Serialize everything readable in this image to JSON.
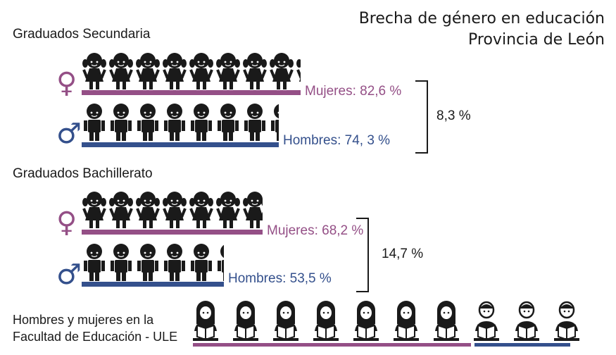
{
  "header": {
    "title_line1": "Brecha de género en educación",
    "title_line2": "Provincia de León"
  },
  "icons": {
    "female": "female-symbol-icon",
    "male": "male-symbol-icon",
    "female_glyph": "♀",
    "male_glyph": "♂"
  },
  "colors": {
    "female": "#944f86",
    "male": "#34508c",
    "text": "#1a1a1a"
  },
  "sections": [
    {
      "label": "Graduados Secundaria",
      "female_label": "Mujeres: 82,6 %",
      "male_label": "Hombres: 74, 3 %",
      "gap_label": "8,3 %"
    },
    {
      "label": "Graduados Bachillerato",
      "female_label": "Mujeres: 68,2 %",
      "male_label": "Hombres: 53,5 %",
      "gap_label": "14,7 %"
    }
  ],
  "faculty": {
    "label_line1": "Hombres y mujeres en la",
    "label_line2": "Facultad de Educación - ULE",
    "women_icons": 7,
    "men_icons": 3
  },
  "chart_data": {
    "type": "bar",
    "title": "Brecha de género en educación — Provincia de León",
    "categories": [
      "Graduados Secundaria",
      "Graduados Bachillerato"
    ],
    "series": [
      {
        "name": "Mujeres",
        "values": [
          82.6,
          68.2
        ]
      },
      {
        "name": "Hombres",
        "values": [
          74.3,
          53.5
        ]
      }
    ],
    "gaps": [
      8.3,
      14.7
    ],
    "units": "%"
  }
}
